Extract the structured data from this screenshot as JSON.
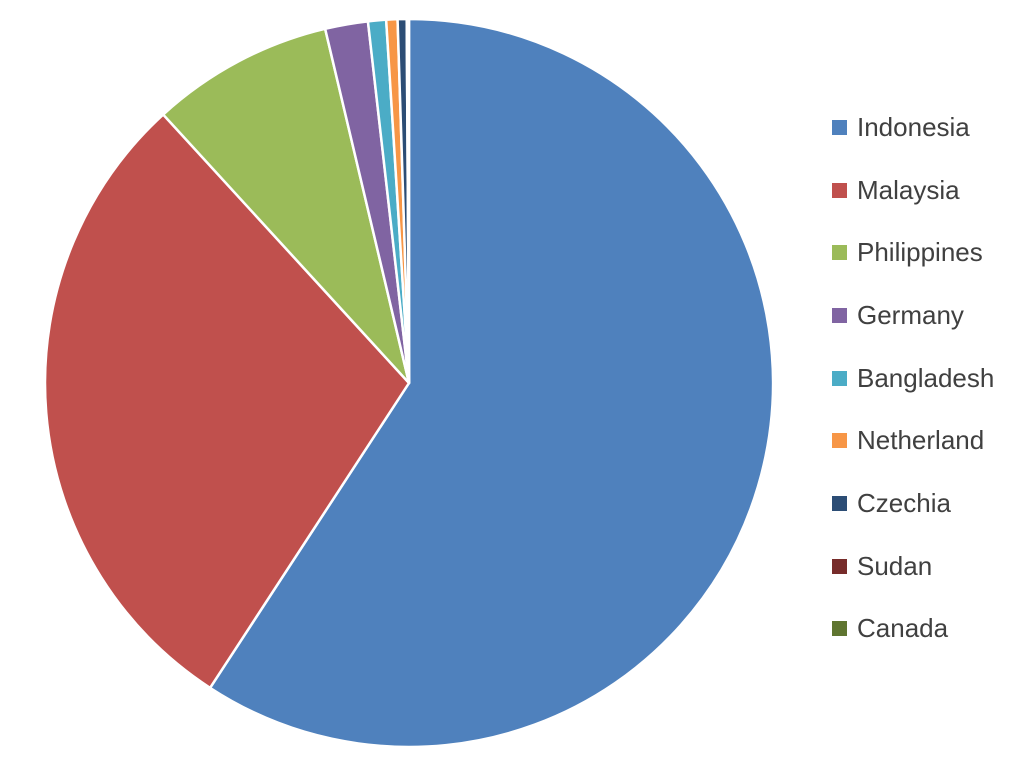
{
  "chart_data": {
    "type": "pie",
    "title": "",
    "legend_position": "right",
    "series": [
      {
        "categories": [
          "Indonesia",
          "Malaysia",
          "Philippines",
          "Germany",
          "Bangladesh",
          "Netherland",
          "Czechia",
          "Sudan",
          "Canada"
        ],
        "values": [
          59.2,
          29.0,
          8.1,
          1.9,
          0.8,
          0.5,
          0.4,
          0.05,
          0.05
        ],
        "colors": [
          "#4F81BD",
          "#C0504D",
          "#9BBB59",
          "#8064A2",
          "#4BACC6",
          "#F79646",
          "#2C4D75",
          "#772C2A",
          "#5F7530"
        ]
      }
    ]
  }
}
